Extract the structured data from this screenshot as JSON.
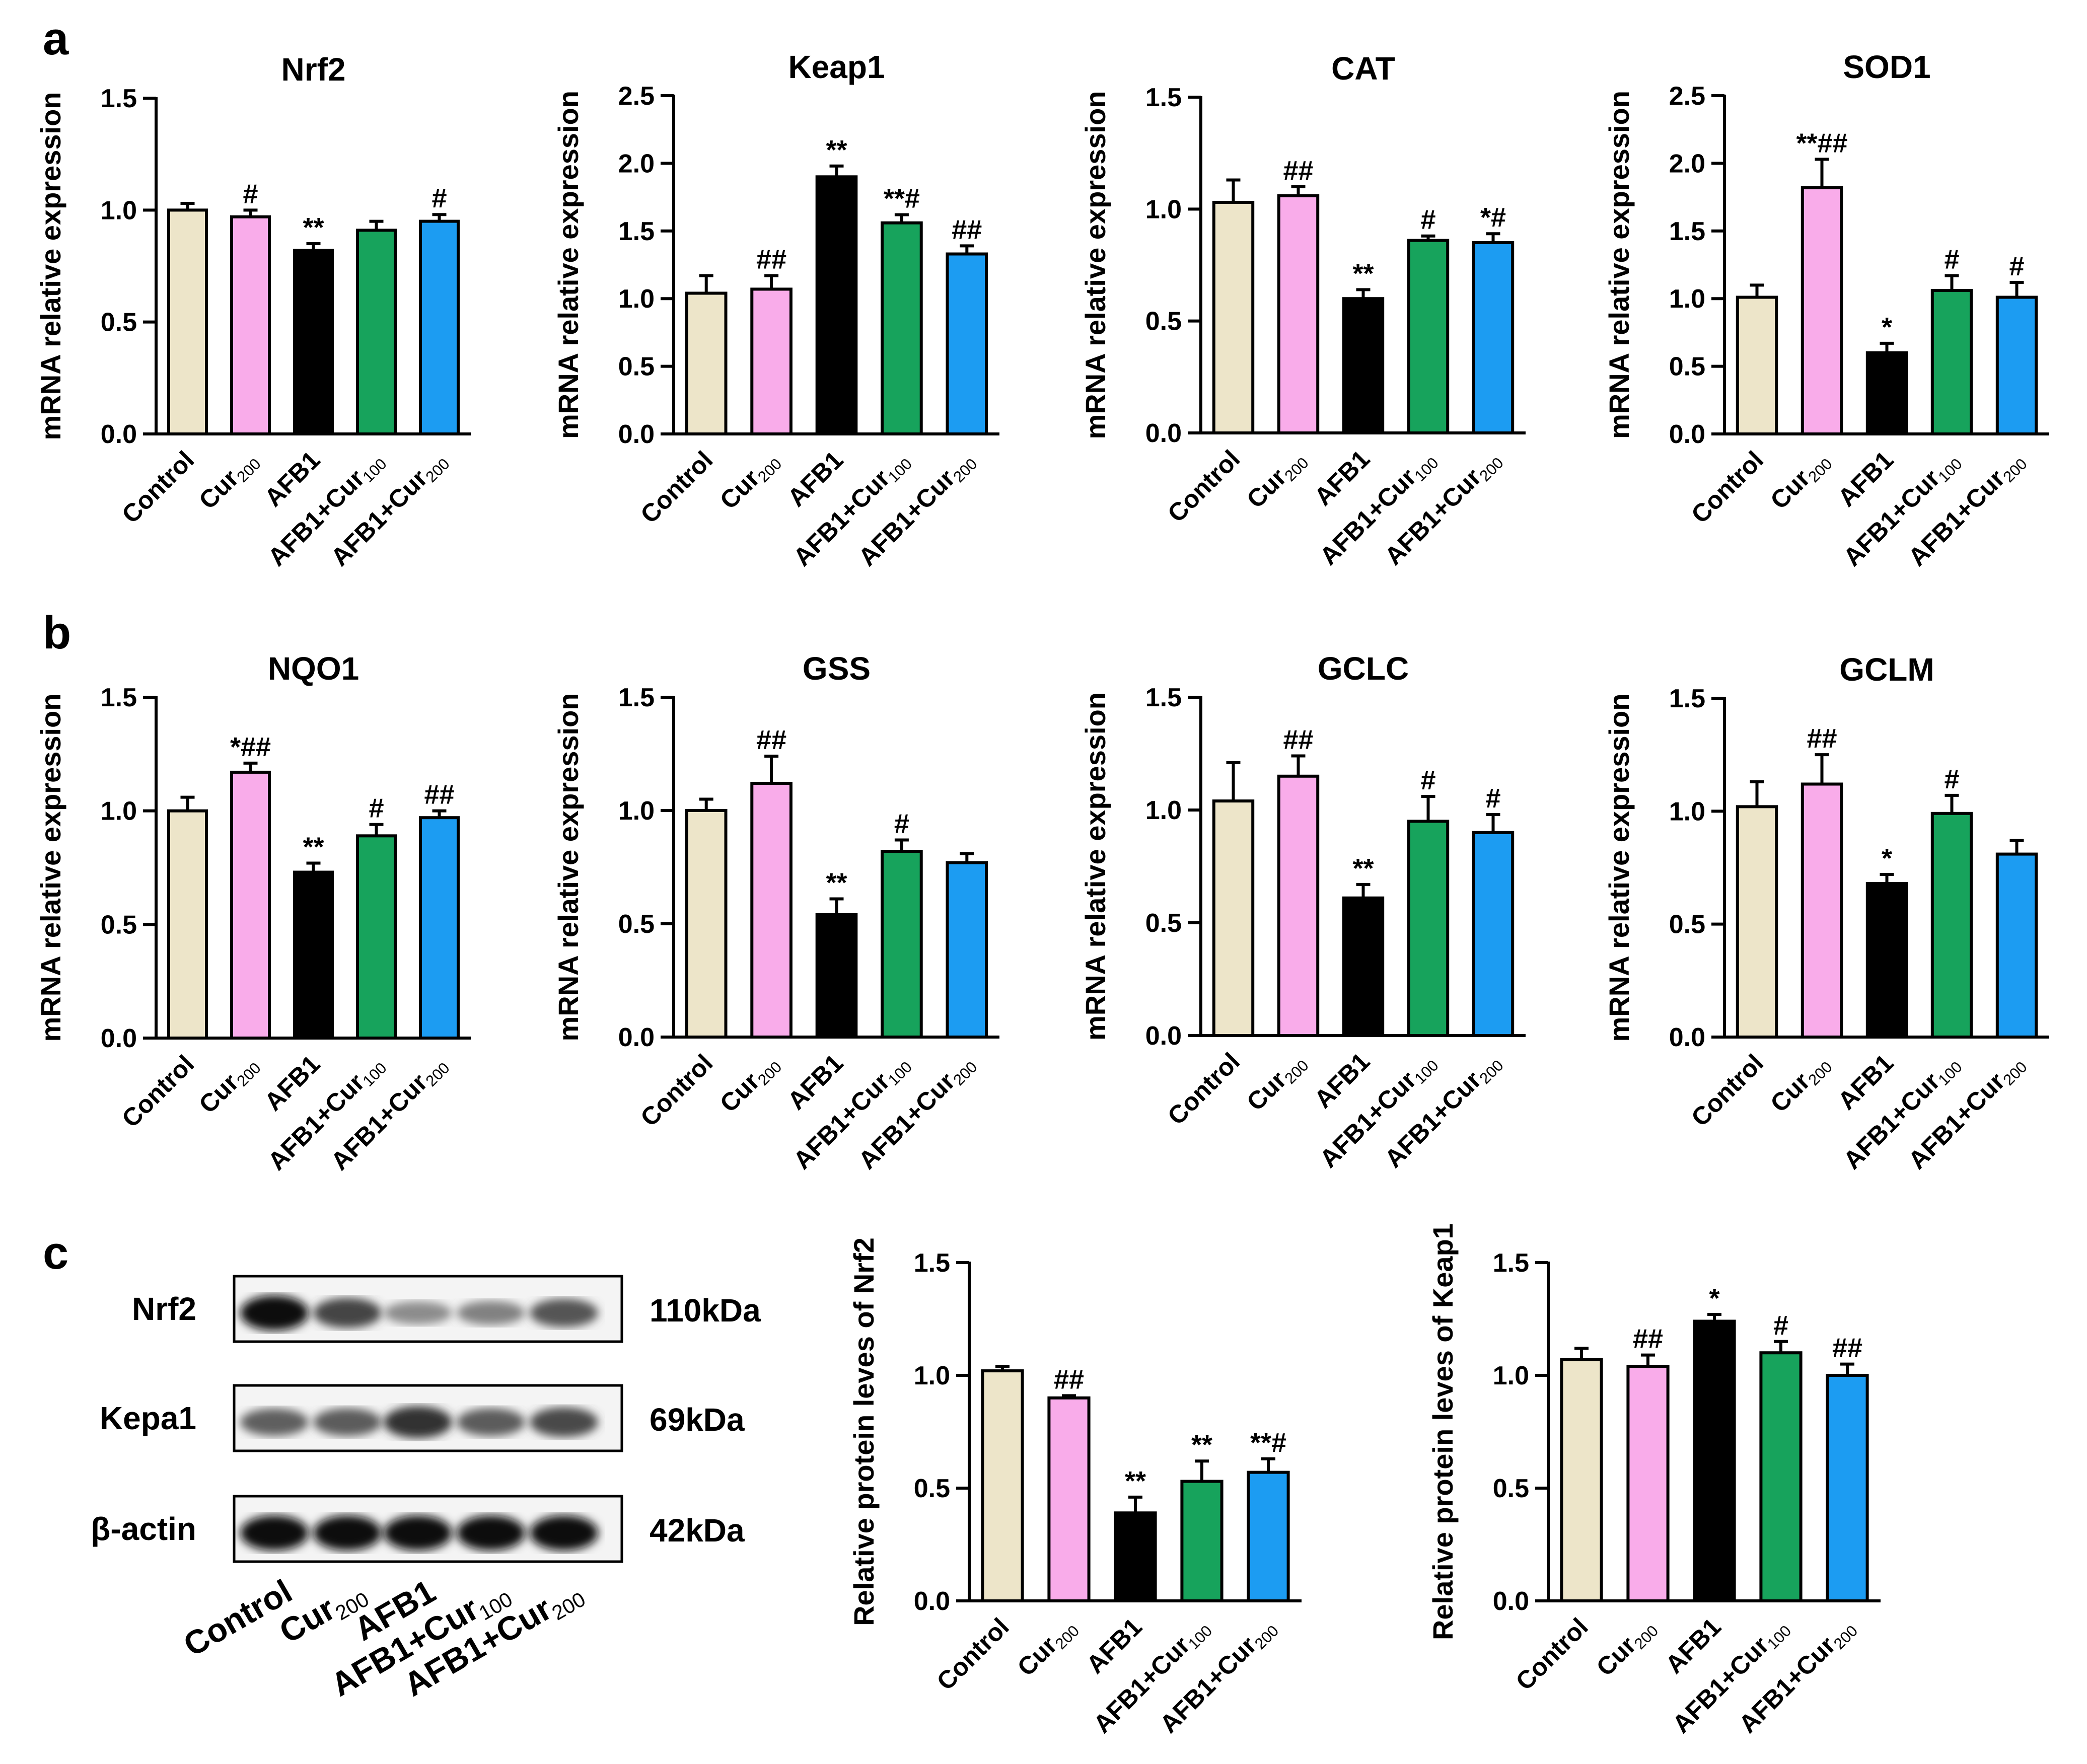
{
  "panel_labels": [
    "a",
    "b",
    "c"
  ],
  "colors": {
    "Control": "#ede5c9",
    "Cur200": "#f9acea",
    "AFB1": "#000000",
    "AFB1+Cur100": "#17a35c",
    "AFB1+Cur200": "#1c9cf2",
    "axis": "#000000"
  },
  "group_labels": [
    {
      "base": "Control",
      "sub": "",
      "rest": ""
    },
    {
      "base": "Cur",
      "sub": "200",
      "rest": ""
    },
    {
      "base": "AFB1",
      "sub": "",
      "rest": ""
    },
    {
      "base": "AFB1+Cur",
      "sub": "100",
      "rest": ""
    },
    {
      "base": "AFB1+Cur",
      "sub": "200",
      "rest": ""
    }
  ],
  "chart_data": [
    {
      "id": "nrf2_mrna",
      "panel": "a",
      "type": "bar",
      "title": "Nrf2",
      "ylabel": "mRNA relative expression",
      "ylim": [
        0,
        1.5
      ],
      "yticks": [
        "0.0",
        "0.5",
        "1.0",
        "1.5"
      ],
      "values": [
        1.0,
        0.97,
        0.82,
        0.91,
        0.95
      ],
      "errors": [
        0.03,
        0.03,
        0.03,
        0.04,
        0.03
      ],
      "annotations": [
        "",
        "#",
        "**",
        "",
        "#"
      ]
    },
    {
      "id": "keap1_mrna",
      "panel": "a",
      "type": "bar",
      "title": "Keap1",
      "ylabel": "mRNA relative expression",
      "ylim": [
        0,
        2.5
      ],
      "yticks": [
        "0.0",
        "0.5",
        "1.0",
        "1.5",
        "2.0",
        "2.5"
      ],
      "values": [
        1.04,
        1.07,
        1.9,
        1.56,
        1.33
      ],
      "errors": [
        0.13,
        0.1,
        0.08,
        0.06,
        0.06
      ],
      "annotations": [
        "",
        "##",
        "**",
        "**#",
        "##"
      ]
    },
    {
      "id": "cat_mrna",
      "panel": "a",
      "type": "bar",
      "title": "CAT",
      "ylabel": "mRNA relative expression",
      "ylim": [
        0,
        1.5
      ],
      "yticks": [
        "0.0",
        "0.5",
        "1.0",
        "1.5"
      ],
      "values": [
        1.03,
        1.06,
        0.6,
        0.86,
        0.85
      ],
      "errors": [
        0.1,
        0.04,
        0.04,
        0.02,
        0.04
      ],
      "annotations": [
        "",
        "##",
        "**",
        "#",
        "*#"
      ]
    },
    {
      "id": "sod1_mrna",
      "panel": "a",
      "type": "bar",
      "title": "SOD1",
      "ylabel": "mRNA relative expression",
      "ylim": [
        0,
        2.5
      ],
      "yticks": [
        "0.0",
        "0.5",
        "1.0",
        "1.5",
        "2.0",
        "2.5"
      ],
      "values": [
        1.01,
        1.82,
        0.6,
        1.06,
        1.01
      ],
      "errors": [
        0.09,
        0.21,
        0.07,
        0.11,
        0.11
      ],
      "annotations": [
        "",
        "**##",
        "*",
        "#",
        "#"
      ]
    },
    {
      "id": "nqo1_mrna",
      "panel": "b",
      "type": "bar",
      "title": "NQO1",
      "ylabel": "mRNA relative expression",
      "ylim": [
        0,
        1.5
      ],
      "yticks": [
        "0.0",
        "0.5",
        "1.0",
        "1.5"
      ],
      "values": [
        1.0,
        1.17,
        0.73,
        0.89,
        0.97
      ],
      "errors": [
        0.06,
        0.04,
        0.04,
        0.05,
        0.03
      ],
      "annotations": [
        "",
        "*##",
        "**",
        "#",
        "##"
      ]
    },
    {
      "id": "gss_mrna",
      "panel": "b",
      "type": "bar",
      "title": "GSS",
      "ylabel": "mRNA relative expression",
      "ylim": [
        0,
        1.5
      ],
      "yticks": [
        "0.0",
        "0.5",
        "1.0",
        "1.5"
      ],
      "values": [
        1.0,
        1.12,
        0.54,
        0.82,
        0.77
      ],
      "errors": [
        0.05,
        0.12,
        0.07,
        0.05,
        0.04
      ],
      "annotations": [
        "",
        "##",
        "**",
        "#",
        ""
      ]
    },
    {
      "id": "gclc_mrna",
      "panel": "b",
      "type": "bar",
      "title": "GCLC",
      "ylabel": "mRNA relative expression",
      "ylim": [
        0,
        1.5
      ],
      "yticks": [
        "0.0",
        "0.5",
        "1.0",
        "1.5"
      ],
      "values": [
        1.04,
        1.15,
        0.61,
        0.95,
        0.9
      ],
      "errors": [
        0.17,
        0.09,
        0.06,
        0.11,
        0.08
      ],
      "annotations": [
        "",
        "##",
        "**",
        "#",
        "#"
      ]
    },
    {
      "id": "gclm_mrna",
      "panel": "b",
      "type": "bar",
      "title": "GCLM",
      "ylabel": "mRNA relative expression",
      "ylim": [
        0,
        1.5
      ],
      "yticks": [
        "0.0",
        "0.5",
        "1.0",
        "1.5"
      ],
      "values": [
        1.02,
        1.12,
        0.68,
        0.99,
        0.81
      ],
      "errors": [
        0.11,
        0.13,
        0.04,
        0.08,
        0.06
      ],
      "annotations": [
        "",
        "##",
        "*",
        "#",
        ""
      ]
    },
    {
      "id": "nrf2_protein",
      "panel": "c",
      "type": "bar",
      "title": "",
      "ylabel": "Relative protein leves of Nrf2",
      "ylim": [
        0,
        1.5
      ],
      "yticks": [
        "0.0",
        "0.5",
        "1.0",
        "1.5"
      ],
      "values": [
        1.02,
        0.9,
        0.39,
        0.53,
        0.57
      ],
      "errors": [
        0.02,
        0.01,
        0.07,
        0.09,
        0.06
      ],
      "annotations": [
        "",
        "##",
        "**",
        "**",
        "**#"
      ]
    },
    {
      "id": "keap1_protein",
      "panel": "c",
      "type": "bar",
      "title": "",
      "ylabel": "Relative protein leves of Keap1",
      "ylim": [
        0,
        1.5
      ],
      "yticks": [
        "0.0",
        "0.5",
        "1.0",
        "1.5"
      ],
      "values": [
        1.07,
        1.04,
        1.24,
        1.1,
        1.0
      ],
      "errors": [
        0.05,
        0.05,
        0.03,
        0.05,
        0.05
      ],
      "annotations": [
        "",
        "##",
        "*",
        "#",
        "##"
      ]
    }
  ],
  "western_blot": {
    "bands": [
      {
        "label": "Nrf2",
        "kda": "110kDa",
        "intensity": [
          0.95,
          0.72,
          0.4,
          0.45,
          0.65
        ]
      },
      {
        "label": "Kepa1",
        "kda": "69kDa",
        "intensity": [
          0.6,
          0.62,
          0.8,
          0.62,
          0.7
        ]
      },
      {
        "label": "β-actin",
        "kda": "42kDa",
        "intensity": [
          0.95,
          0.95,
          0.95,
          0.95,
          0.95
        ]
      }
    ],
    "lane_labels": [
      {
        "base": "Control",
        "sub": "",
        "rest": ""
      },
      {
        "base": "Cur",
        "sub": "200",
        "rest": ""
      },
      {
        "base": "AFB1",
        "sub": "",
        "rest": ""
      },
      {
        "base": "AFB1+Cur",
        "sub": "100",
        "rest": ""
      },
      {
        "base": "AFB1+Cur",
        "sub": "200",
        "rest": ""
      }
    ]
  }
}
